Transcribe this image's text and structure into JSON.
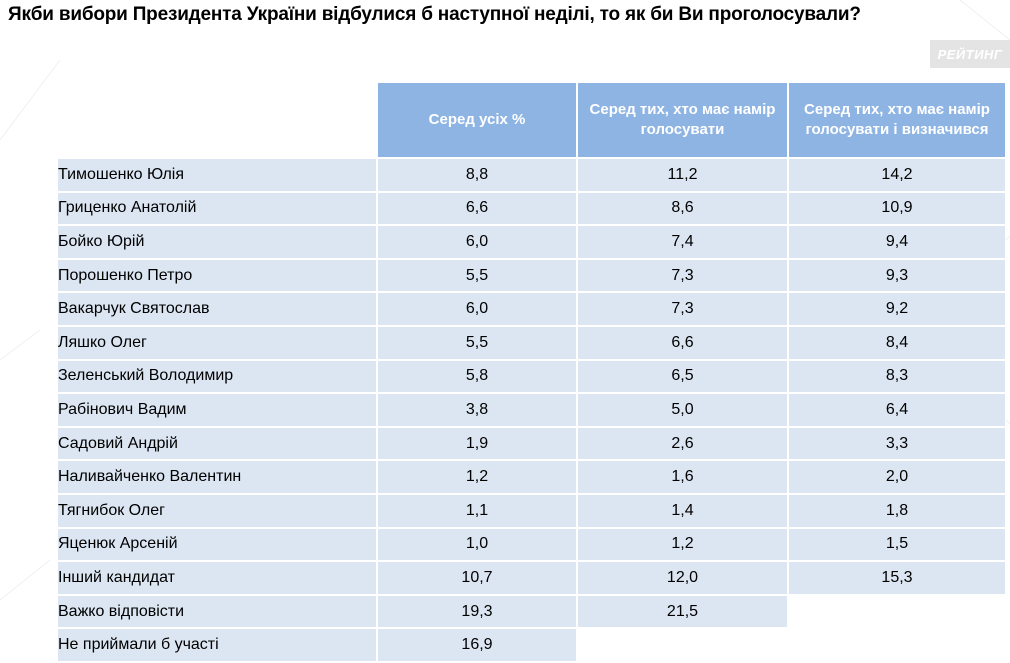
{
  "title": "Якби вибори Президента України відбулися б наступної неділі, то як би Ви проголосували?",
  "logo_text": "РЕЙТИНГ",
  "colors": {
    "header": "#8eb4e3",
    "row": "#dce6f2",
    "logo_bg": "#e4e4e4"
  },
  "columns": [
    "Серед усіх %",
    "Серед тих, хто має намір голосувати",
    "Серед тих, хто має намір голосувати і визначився"
  ],
  "rows": [
    {
      "name": "Тимошенко Юлія",
      "values": [
        "8,8",
        "11,2",
        "14,2"
      ]
    },
    {
      "name": "Гриценко Анатолій",
      "values": [
        "6,6",
        "8,6",
        "10,9"
      ]
    },
    {
      "name": "Бойко Юрій",
      "values": [
        "6,0",
        "7,4",
        "9,4"
      ]
    },
    {
      "name": "Порошенко Петро",
      "values": [
        "5,5",
        "7,3",
        "9,3"
      ]
    },
    {
      "name": "Вакарчук Святослав",
      "values": [
        "6,0",
        "7,3",
        "9,2"
      ]
    },
    {
      "name": "Ляшко Олег",
      "values": [
        "5,5",
        "6,6",
        "8,4"
      ]
    },
    {
      "name": "Зеленський Володимир",
      "values": [
        "5,8",
        "6,5",
        "8,3"
      ]
    },
    {
      "name": "Рабінович Вадим",
      "values": [
        "3,8",
        "5,0",
        "6,4"
      ]
    },
    {
      "name": "Садовий Андрій",
      "values": [
        "1,9",
        "2,6",
        "3,3"
      ]
    },
    {
      "name": "Наливайченко Валентин",
      "values": [
        "1,2",
        "1,6",
        "2,0"
      ]
    },
    {
      "name": "Тягнибок Олег",
      "values": [
        "1,1",
        "1,4",
        "1,8"
      ]
    },
    {
      "name": "Яценюк Арсеній",
      "values": [
        "1,0",
        "1,2",
        "1,5"
      ]
    },
    {
      "name": "Інший кандидат",
      "values": [
        "10,7",
        "12,0",
        "15,3"
      ]
    },
    {
      "name": "Важко відповісти",
      "values": [
        "19,3",
        "21,5"
      ]
    },
    {
      "name": "Не приймали б участі",
      "values": [
        "16,9"
      ]
    }
  ]
}
